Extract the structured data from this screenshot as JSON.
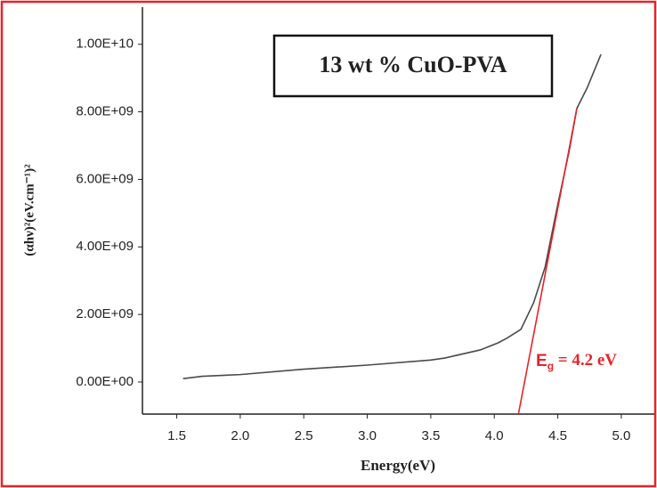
{
  "chart_data": {
    "type": "line",
    "legend_text": "13 wt % CuO-PVA",
    "x_label": "Energy(eV)",
    "y_label": "(αhν)²(eV.cm⁻¹)²",
    "annotation": {
      "main": "E",
      "sub": "g",
      "rest": " = 4.2 eV"
    },
    "xlim": [
      1.23,
      5.26
    ],
    "ylim": [
      -950000000,
      11100000000
    ],
    "xticks": [
      1.5,
      {
        "value": 2,
        "label": "2.0"
      },
      2.5,
      {
        "value": 3,
        "label": "3.0"
      },
      3.5,
      {
        "value": 4,
        "label": "4.0"
      },
      4.5,
      {
        "value": 5,
        "label": "5.0"
      }
    ],
    "yticks": [
      {
        "value": 0,
        "label": "0.00E+00"
      },
      {
        "value": 2000000000,
        "label": "2.00E+09"
      },
      {
        "value": 4000000000,
        "label": "4.00E+09"
      },
      {
        "value": 6000000000,
        "label": "6.00E+09"
      },
      {
        "value": 8000000000,
        "label": "8.00E+09"
      },
      {
        "value": 10000000000,
        "label": "1.00E+10"
      }
    ],
    "series": [
      {
        "color": "#4a4a4a",
        "x": [
          1.55,
          1.7,
          2.0,
          2.5,
          3.0,
          3.5,
          3.61,
          3.89,
          4.03,
          4.1,
          4.21,
          4.31,
          4.4,
          4.5,
          4.59,
          4.65,
          4.73,
          4.84
        ],
        "values": [
          100000000,
          170000000,
          220000000,
          380000000,
          500000000,
          650000000,
          710000000,
          950000000,
          1160000000,
          1300000000,
          1560000000,
          2350000000,
          3400000000,
          5260000000,
          6850000000,
          8100000000,
          8700000000,
          9700000000
        ]
      },
      {
        "color": "#e8232a",
        "x": [
          4.19,
          4.65
        ],
        "values": [
          -950000000,
          8100000000
        ]
      }
    ]
  }
}
